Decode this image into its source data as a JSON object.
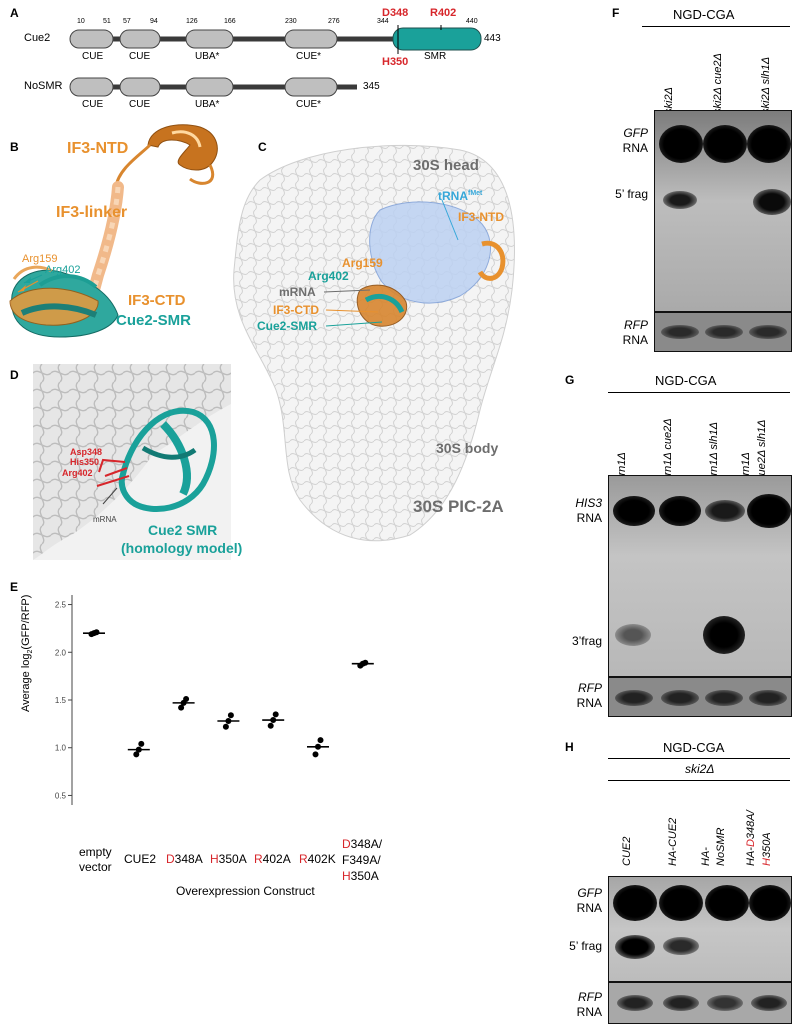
{
  "panels": {
    "A": {
      "label": "A",
      "cue2_name": "Cue2",
      "nosmr_name": "NoSMR",
      "cue2_length": "443",
      "nosmr_length": "345",
      "domains": [
        "CUE",
        "CUE",
        "UBA*",
        "CUE*"
      ],
      "smr_label": "SMR",
      "positions": [
        "10",
        "51",
        "57",
        "94",
        "126",
        "166",
        "230",
        "276",
        "344",
        "440"
      ],
      "mut_top_1": "D348",
      "mut_top_2": "R402",
      "mut_bottom": "H350"
    },
    "B": {
      "label": "B",
      "ntd": "IF3-NTD",
      "linker": "IF3-linker",
      "arg159": "Arg159",
      "arg402": "Arg402",
      "ctd": "IF3-CTD",
      "smr": "Cue2-SMR"
    },
    "C": {
      "label": "C",
      "head": "30S head",
      "trna": "tRNA",
      "trna_sup": "fMet",
      "ntd": "IF3-NTD",
      "arg159": "Arg159",
      "arg402": "Arg402",
      "mrna": "mRNA",
      "ctd": "IF3-CTD",
      "smr": "Cue2-SMR",
      "body": "30S body",
      "pic": "30S PIC-2A"
    },
    "D": {
      "label": "D",
      "asp348": "Asp348",
      "his350": "His350",
      "arg402": "Arg402",
      "mrna": "mRNA",
      "title_1": "Cue2 SMR",
      "title_2": "(homology model)"
    },
    "E": {
      "label": "E",
      "ylabel_pre": "Average log",
      "ylabel_sub": "2",
      "ylabel_post": "(GFP/RFP)",
      "xlabel": "Overexpression Construct",
      "cat_1a": "empty",
      "cat_1b": "vector",
      "cat_2": "CUE2",
      "cat_3r": "D",
      "cat_3": "348A",
      "cat_4r": "H",
      "cat_4": "350A",
      "cat_5r": "R",
      "cat_5": "402A",
      "cat_6r": "R",
      "cat_6": "402K",
      "cat_7ar": "D",
      "cat_7a": "348A/",
      "cat_7b": "F349A/",
      "cat_7cr": "H",
      "cat_7c": "350A",
      "yticks": [
        "2.5",
        "2.0",
        "1.5",
        "1.0",
        "0.5"
      ]
    },
    "F": {
      "label": "F",
      "header": "NGD-CGA",
      "lanes": [
        "ski2Δ",
        "ski2Δ cue2Δ",
        "ski2Δ slh1Δ"
      ],
      "row_1a": "GFP",
      "row_1b": "RNA",
      "row_2": "5’ frag",
      "row_3a": "RFP",
      "row_3b": "RNA"
    },
    "G": {
      "label": "G",
      "header": "NGD-CGA",
      "lane_1": "xrn1Δ",
      "lane_2": "xrn1Δ cue2Δ",
      "lane_3": "xrn1Δ slh1Δ",
      "lane_4a": "xrn1Δ",
      "lane_4b": "cue2Δ slh1Δ",
      "row_1a": "HIS3",
      "row_1b": "RNA",
      "row_2": "3’frag",
      "row_3a": "RFP",
      "row_3b": "RNA"
    },
    "H": {
      "label": "H",
      "header": "NGD-CGA",
      "subheader": "ski2Δ",
      "lane_1": "CUE2",
      "lane_2": "HA-CUE2",
      "lane_3a": "HA-",
      "lane_3b": "NoSMR",
      "lane_4_pre": "HA-",
      "lane_4_r1": "D",
      "lane_4_mid": "348A/",
      "lane_4_r2": "H",
      "lane_4_post": "350A",
      "row_1a": "GFP",
      "row_1b": "RNA",
      "row_2": "5’ frag",
      "row_3a": "RFP",
      "row_3b": "RNA"
    }
  },
  "chart_data": {
    "type": "scatter",
    "categories": [
      "empty vector",
      "CUE2",
      "D348A",
      "H350A",
      "R402A",
      "R402K",
      "D348A/F349A/H350A"
    ],
    "points": [
      [
        2.19,
        2.2,
        2.21
      ],
      [
        0.93,
        0.98,
        1.04
      ],
      [
        1.42,
        1.47,
        1.51
      ],
      [
        1.22,
        1.28,
        1.34
      ],
      [
        1.23,
        1.29,
        1.35
      ],
      [
        0.93,
        1.01,
        1.08
      ],
      [
        1.86,
        1.88,
        1.89
      ]
    ],
    "means": [
      2.2,
      0.98,
      1.47,
      1.28,
      1.29,
      1.01,
      1.88
    ],
    "ylabel": "Average log2(GFP/RFP)",
    "xlabel": "Overexpression Construct",
    "ylim": [
      0.4,
      2.6
    ],
    "highlight_color": "#d7262b"
  },
  "colors": {
    "smr_teal": "#1aa19a",
    "if3_orange": "#e8912e",
    "mutation_red": "#d7262b",
    "trna_blue": "#35a7d9",
    "label_gray": "#6d6d6d"
  }
}
